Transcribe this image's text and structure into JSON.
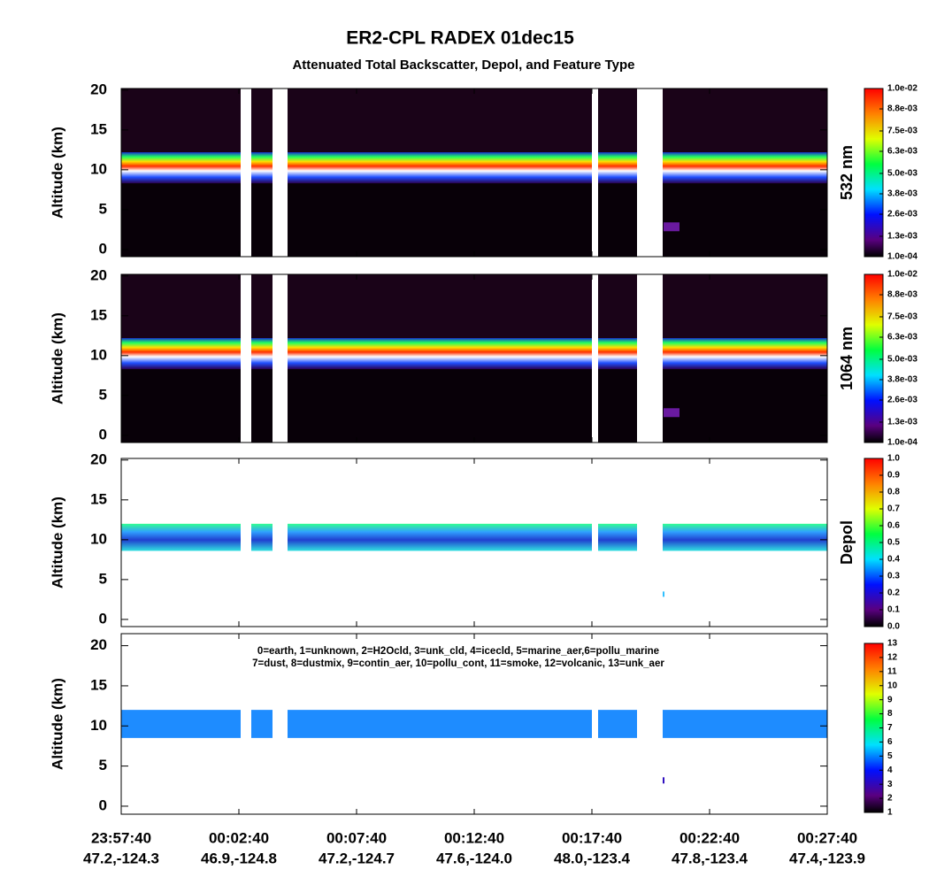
{
  "chart_data": {
    "type": "lidar-curtain",
    "title": "ER2-CPL RADEX 01dec15",
    "subtitle": "Attenuated Total Backscatter, Depol, and Feature Type",
    "xlim": [
      0,
      30
    ],
    "xticks": [
      {
        "value": 0,
        "label": "23:57:40"
      },
      {
        "value": 5,
        "label": "00:02:40"
      },
      {
        "value": 10,
        "label": "00:07:40"
      },
      {
        "value": 15,
        "label": "00:12:40"
      },
      {
        "value": 20,
        "label": "00:17:40"
      },
      {
        "value": 25,
        "label": "00:22:40"
      },
      {
        "value": 30,
        "label": "00:27:40"
      }
    ],
    "xtick_locations": [
      "47.2,-124.3",
      "46.9,-124.8",
      "47.2,-124.7",
      "47.6,-124.0",
      "48.0,-123.4",
      "47.8,-123.4",
      "47.4,-123.9"
    ],
    "panels": [
      {
        "ylabel": "Altitude (km)",
        "colorbar_label": "532 nm",
        "ylim": [
          -0.9,
          20.2
        ],
        "yticks": [
          0,
          5,
          10,
          15,
          20
        ],
        "colorbar_lim": [
          0.0001,
          0.01
        ],
        "colorbar_ticks": [
          {
            "value": 0.0001,
            "label": "1.0e-04"
          },
          {
            "value": 0.0013,
            "label": "1.3e-03"
          },
          {
            "value": 0.0026,
            "label": "2.6e-03"
          },
          {
            "value": 0.0038,
            "label": "3.8e-03"
          },
          {
            "value": 0.005,
            "label": "5.0e-03"
          },
          {
            "value": 0.0063,
            "label": "6.3e-03"
          },
          {
            "value": 0.0075,
            "label": "7.5e-03"
          },
          {
            "value": 0.0088,
            "label": "8.8e-03"
          },
          {
            "value": 0.01,
            "label": "1.0e-02"
          }
        ]
      },
      {
        "ylabel": "Altitude (km)",
        "colorbar_label": "1064 nm",
        "ylim": [
          -0.9,
          20.2
        ],
        "yticks": [
          0,
          5,
          10,
          15,
          20
        ],
        "colorbar_lim": [
          0.0001,
          0.01
        ],
        "colorbar_ticks": [
          {
            "value": 0.0001,
            "label": "1.0e-04"
          },
          {
            "value": 0.0013,
            "label": "1.3e-03"
          },
          {
            "value": 0.0026,
            "label": "2.6e-03"
          },
          {
            "value": 0.0038,
            "label": "3.8e-03"
          },
          {
            "value": 0.005,
            "label": "5.0e-03"
          },
          {
            "value": 0.0063,
            "label": "6.3e-03"
          },
          {
            "value": 0.0075,
            "label": "7.5e-03"
          },
          {
            "value": 0.0088,
            "label": "8.8e-03"
          },
          {
            "value": 0.01,
            "label": "1.0e-02"
          }
        ]
      },
      {
        "ylabel": "Altitude (km)",
        "colorbar_label": "Depol",
        "ylim": [
          -0.9,
          20.2
        ],
        "yticks": [
          0,
          5,
          10,
          15,
          20
        ],
        "colorbar_lim": [
          0,
          1
        ],
        "colorbar_ticks": [
          {
            "value": 0,
            "label": "0.0"
          },
          {
            "value": 0.1,
            "label": "0.1"
          },
          {
            "value": 0.2,
            "label": "0.2"
          },
          {
            "value": 0.3,
            "label": "0.3"
          },
          {
            "value": 0.4,
            "label": "0.4"
          },
          {
            "value": 0.5,
            "label": "0.5"
          },
          {
            "value": 0.6,
            "label": "0.6"
          },
          {
            "value": 0.7,
            "label": "0.7"
          },
          {
            "value": 0.8,
            "label": "0.8"
          },
          {
            "value": 0.9,
            "label": "0.9"
          },
          {
            "value": 1,
            "label": "1.0"
          }
        ]
      },
      {
        "ylabel": "Altitude (km)",
        "ylim": [
          -1,
          21.5
        ],
        "yticks": [
          0,
          5,
          10,
          15,
          20
        ],
        "colorbar_lim": [
          1,
          13
        ],
        "colorbar_ticks": [
          1,
          2,
          3,
          4,
          5,
          6,
          7,
          8,
          9,
          10,
          11,
          12,
          13
        ],
        "legend_lines": [
          "0=earth, 1=unknown, 2=H2Ocld, 3=unk_cld, 4=icecld, 5=marine_aer,6=pollu_marine",
          "7=dust, 8=dustmix, 9=contin_aer, 10=pollu_cont, 11=smoke, 12=volcanic, 13=unk_aer"
        ]
      }
    ]
  }
}
